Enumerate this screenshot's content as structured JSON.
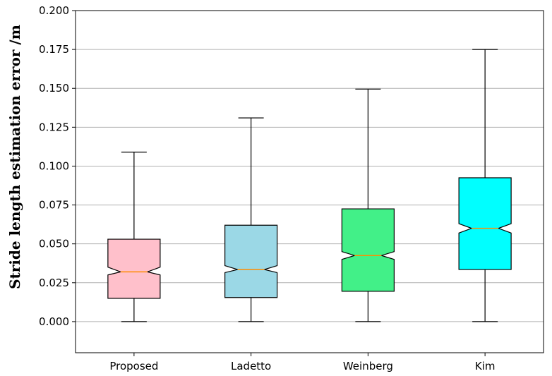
{
  "chart_data": {
    "type": "boxplot",
    "notched": true,
    "title": "",
    "xlabel": "",
    "ylabel": "Stride length estimation error /m",
    "ylim": [
      -0.02,
      0.2
    ],
    "yticks": [
      "0.000",
      "0.025",
      "0.050",
      "0.075",
      "0.100",
      "0.125",
      "0.150",
      "0.175",
      "0.200"
    ],
    "ytick_values": [
      0.0,
      0.025,
      0.05,
      0.075,
      0.1,
      0.125,
      0.15,
      0.175,
      0.2
    ],
    "grid": "horizontal",
    "categories": [
      "Proposed",
      "Ladetto",
      "Weinberg",
      "Kim"
    ],
    "series": [
      {
        "name": "Proposed",
        "min": 0.0,
        "q1": 0.015,
        "median": 0.032,
        "q3": 0.053,
        "max": 0.109,
        "notch_low": 0.03,
        "notch_high": 0.035,
        "color": "#ffc0cb"
      },
      {
        "name": "Ladetto",
        "min": 0.0,
        "q1": 0.0155,
        "median": 0.0335,
        "q3": 0.062,
        "max": 0.131,
        "notch_low": 0.0315,
        "notch_high": 0.036,
        "color": "#9bd8e6"
      },
      {
        "name": "Weinberg",
        "min": 0.0,
        "q1": 0.0195,
        "median": 0.0425,
        "q3": 0.0725,
        "max": 0.1495,
        "notch_low": 0.04,
        "notch_high": 0.045,
        "color": "#42f088"
      },
      {
        "name": "Kim",
        "min": 0.0,
        "q1": 0.0335,
        "median": 0.06,
        "q3": 0.0925,
        "max": 0.175,
        "notch_low": 0.057,
        "notch_high": 0.063,
        "color": "#00ffff"
      }
    ],
    "median_color": "#ff8c00"
  }
}
